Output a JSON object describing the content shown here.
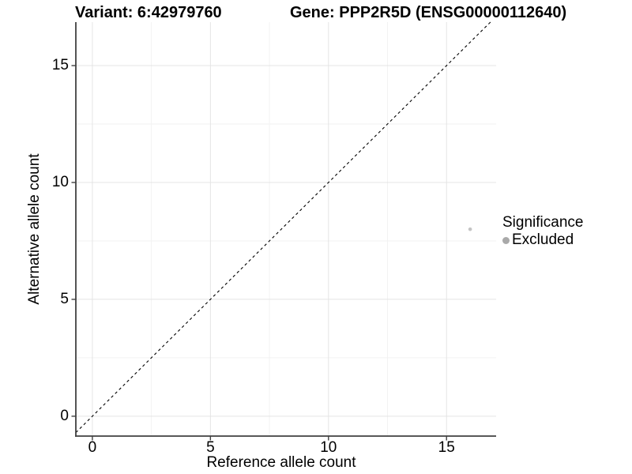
{
  "chart_data": {
    "type": "scatter",
    "title_left": "Variant: 6:42979760",
    "title_right": "Gene: PPP2R5D (ENSG00000112640)",
    "xlabel": "Reference allele count",
    "ylabel": "Alternative allele count",
    "x_ticks": [
      0,
      5,
      10,
      15
    ],
    "y_ticks": [
      0,
      5,
      10,
      15
    ],
    "x_minor_ticks": [
      2.5,
      7.5,
      12.5
    ],
    "y_minor_ticks": [
      2.5,
      7.5,
      12.5
    ],
    "xlim": [
      -0.7,
      17.1
    ],
    "ylim": [
      -0.85,
      16.86
    ],
    "grid": true,
    "series": [
      {
        "name": "Excluded",
        "points": [
          {
            "x": 16,
            "y": 8
          }
        ],
        "color": "#c4c4c4",
        "marker": "circle",
        "size": 2.3
      }
    ],
    "identity_line": {
      "equation": "y = x",
      "style": "dashed",
      "color": "#000000"
    },
    "legend": {
      "title": "Significance",
      "position": "right",
      "entries": [
        {
          "label": "Excluded",
          "color": "#a9a9a9"
        }
      ]
    },
    "colors": {
      "grid_major": "#e4e4e4",
      "grid_minor": "#f2f2f2",
      "axis_line": "#404040",
      "text": "#000000",
      "background": "#ffffff"
    }
  }
}
